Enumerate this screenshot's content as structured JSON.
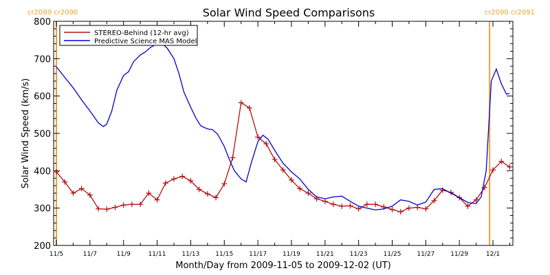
{
  "chart_data": {
    "type": "line",
    "title": "Solar Wind Speed Comparisons",
    "xlabel": "Month/Day from 2009-11-05 to 2009-12-02 (UT)",
    "ylabel": "Solar Wind Speed (km/s)",
    "x_range": [
      0,
      27.2
    ],
    "ylim": [
      200,
      800
    ],
    "y_ticks": [
      200,
      300,
      400,
      500,
      600,
      700,
      800
    ],
    "x_ticks": [
      {
        "x": 0,
        "label": "11/5"
      },
      {
        "x": 2,
        "label": "11/7"
      },
      {
        "x": 4,
        "label": "11/9"
      },
      {
        "x": 6,
        "label": "11/11"
      },
      {
        "x": 8,
        "label": "11/13"
      },
      {
        "x": 10,
        "label": "11/15"
      },
      {
        "x": 12,
        "label": "11/17"
      },
      {
        "x": 14,
        "label": "11/19"
      },
      {
        "x": 16,
        "label": "11/21"
      },
      {
        "x": 18,
        "label": "11/23"
      },
      {
        "x": 20,
        "label": "11/25"
      },
      {
        "x": 22,
        "label": "11/27"
      },
      {
        "x": 24,
        "label": "11/29"
      },
      {
        "x": 26,
        "label": "12/1"
      }
    ],
    "grid": false,
    "legend_position": "top-left",
    "carrington_markers": [
      {
        "x": 0,
        "label": "cr2089 cr2090",
        "color": "#f0a030",
        "label_side": "left"
      },
      {
        "x": 25.8,
        "label": "cr2090 cr2091",
        "color": "#f0a030",
        "label_side": "right"
      }
    ],
    "series": [
      {
        "name": "STEREO-Behind (12-hr avg)",
        "color": "#b01010",
        "marker": "plus",
        "x": [
          0.0,
          0.5,
          1.0,
          1.5,
          2.0,
          2.5,
          3.0,
          3.5,
          4.0,
          4.5,
          5.0,
          5.5,
          6.0,
          6.5,
          7.0,
          7.5,
          8.0,
          8.5,
          9.0,
          9.5,
          10.0,
          10.5,
          11.0,
          11.5,
          12.0,
          12.5,
          13.0,
          13.5,
          14.0,
          14.5,
          15.0,
          15.5,
          16.0,
          16.5,
          17.0,
          17.5,
          18.0,
          18.5,
          19.0,
          19.5,
          20.0,
          20.5,
          21.0,
          21.5,
          22.0,
          22.5,
          23.0,
          23.5,
          24.0,
          24.5,
          25.0,
          25.5,
          26.0,
          26.5,
          27.0
        ],
        "y": [
          397,
          370,
          340,
          352,
          335,
          298,
          297,
          302,
          308,
          310,
          310,
          340,
          322,
          367,
          378,
          385,
          373,
          350,
          338,
          328,
          365,
          435,
          582,
          568,
          490,
          472,
          430,
          402,
          375,
          352,
          340,
          325,
          318,
          310,
          305,
          306,
          298,
          310,
          310,
          303,
          296,
          290,
          300,
          302,
          298,
          320,
          348,
          342,
          328,
          305,
          322,
          355,
          402,
          425,
          410
        ]
      },
      {
        "name": "Predictive Science MAS Model",
        "color": "#0000cc",
        "marker": "none",
        "x": [
          0.0,
          0.5,
          1.0,
          1.5,
          2.0,
          2.5,
          2.8,
          3.0,
          3.3,
          3.6,
          4.0,
          4.3,
          4.6,
          5.0,
          5.3,
          5.6,
          6.0,
          6.3,
          6.6,
          7.0,
          7.3,
          7.6,
          8.0,
          8.3,
          8.6,
          9.0,
          9.3,
          9.6,
          10.0,
          10.3,
          10.6,
          11.0,
          11.3,
          11.6,
          12.0,
          12.3,
          12.6,
          13.0,
          13.5,
          14.0,
          14.5,
          15.0,
          15.5,
          16.0,
          16.5,
          17.0,
          17.5,
          18.0,
          18.5,
          19.0,
          19.5,
          20.0,
          20.5,
          21.0,
          21.5,
          22.0,
          22.5,
          23.0,
          23.5,
          24.0,
          24.5,
          25.0,
          25.3,
          25.6,
          25.9,
          26.2,
          26.5,
          26.8,
          27.0
        ],
        "y": [
          678,
          650,
          622,
          590,
          560,
          528,
          518,
          525,
          560,
          615,
          655,
          665,
          692,
          710,
          718,
          730,
          740,
          740,
          728,
          700,
          660,
          610,
          570,
          542,
          520,
          512,
          510,
          498,
          465,
          430,
          400,
          378,
          370,
          420,
          478,
          495,
          485,
          455,
          420,
          397,
          378,
          350,
          330,
          325,
          330,
          332,
          318,
          305,
          300,
          295,
          298,
          305,
          322,
          318,
          308,
          316,
          350,
          352,
          340,
          328,
          315,
          312,
          330,
          400,
          640,
          672,
          633,
          605,
          607
        ]
      }
    ]
  }
}
